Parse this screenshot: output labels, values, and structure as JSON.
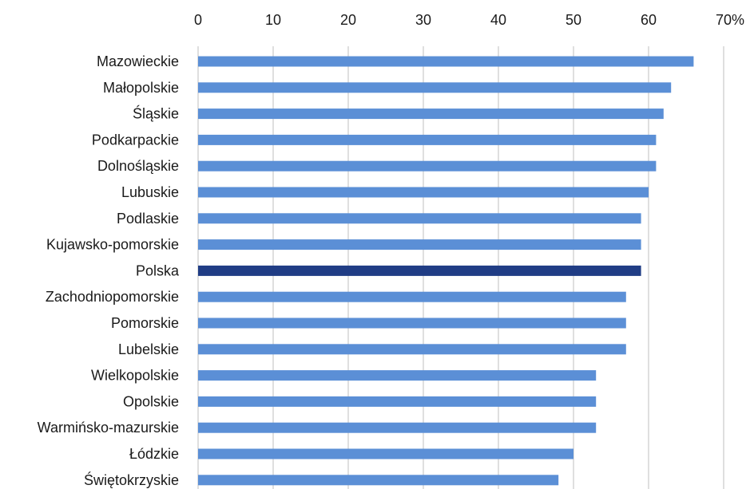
{
  "chart_data": {
    "type": "bar",
    "orientation": "horizontal",
    "title": "",
    "xlabel": "",
    "ylabel": "",
    "unit": "%",
    "xlim": [
      0,
      70
    ],
    "x_ticks": [
      0,
      10,
      20,
      30,
      40,
      50,
      60,
      70
    ],
    "axis_position": "top",
    "grid": true,
    "categories": [
      "Mazowieckie",
      "Małopolskie",
      "Śląskie",
      "Podkarpackie",
      "Dolnośląskie",
      "Lubuskie",
      "Podlaskie",
      "Kujawsko-pomorskie",
      "Polska",
      "Zachodniopomorskie",
      "Pomorskie",
      "Lubelskie",
      "Wielkopolskie",
      "Opolskie",
      "Warmińsko-mazurskie",
      "Łódzkie",
      "Świętokrzyskie"
    ],
    "values": [
      66,
      63,
      62,
      61,
      61,
      60,
      59,
      59,
      59,
      57,
      57,
      57,
      53,
      53,
      53,
      50,
      48
    ],
    "highlight_category": "Polska",
    "colors": {
      "bar": "#5b8fd6",
      "highlight": "#203d85",
      "grid": "#bfbfbf"
    }
  }
}
